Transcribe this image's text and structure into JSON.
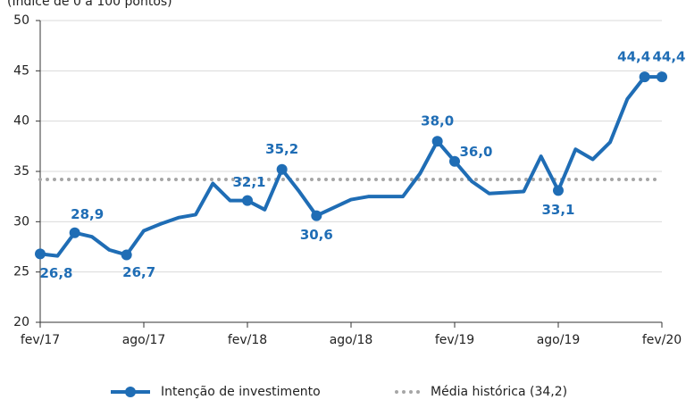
{
  "chart_data": {
    "type": "line",
    "subtitle": "(Índice de 0 a 100 pontos)",
    "categories": [
      "fev/17",
      null,
      null,
      null,
      null,
      null,
      "ago/17",
      null,
      null,
      null,
      null,
      null,
      "fev/18",
      null,
      null,
      null,
      null,
      null,
      "ago/18",
      null,
      null,
      null,
      null,
      null,
      "fev/19",
      null,
      null,
      null,
      null,
      null,
      "ago/19",
      null,
      null,
      null,
      null,
      null,
      "fev/20"
    ],
    "series": [
      {
        "name": "Intenção de investimento",
        "color": "#1f6db5",
        "values": [
          26.8,
          26.6,
          28.9,
          28.5,
          27.2,
          26.7,
          29.1,
          29.8,
          30.4,
          30.7,
          33.8,
          32.1,
          32.1,
          31.2,
          35.2,
          33.0,
          30.6,
          31.4,
          32.2,
          32.5,
          32.5,
          32.5,
          34.8,
          38.0,
          36.0,
          34.0,
          32.8,
          32.9,
          33.0,
          36.5,
          33.1,
          37.2,
          36.2,
          37.9,
          42.2,
          44.4,
          44.4
        ],
        "value_labels": [
          "26,8",
          null,
          "28,9",
          null,
          null,
          "26,7",
          null,
          null,
          null,
          null,
          null,
          null,
          "32,1",
          null,
          "35,2",
          null,
          "30,6",
          null,
          null,
          null,
          null,
          null,
          null,
          "38,0",
          "36,0",
          null,
          null,
          null,
          null,
          null,
          "33,1",
          null,
          null,
          null,
          null,
          "44,4",
          "44,4"
        ]
      }
    ],
    "reference_line": {
      "name": "Média histórica (34,2)",
      "value": 34.2,
      "color": "#a6a6a6"
    },
    "ylim": [
      20,
      50
    ],
    "yticks": [
      20,
      25,
      30,
      35,
      40,
      45,
      50
    ],
    "grid": true
  }
}
